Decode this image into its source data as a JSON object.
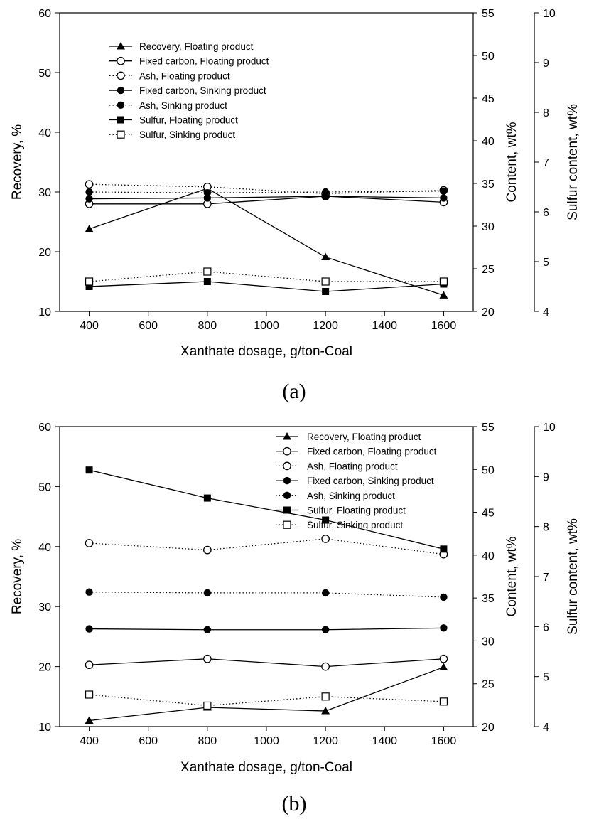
{
  "figure": {
    "captions": [
      "(a)",
      "(b)"
    ]
  },
  "chart_data": [
    {
      "type": "line",
      "panel_label": "(a)",
      "xlabel": "Xanthate dosage, g/ton-Coal",
      "ylabel": "Recovery, %",
      "y2label": "Content, wt%",
      "y3label": "Sulfur content, wt%",
      "x": [
        400,
        800,
        1200,
        1600
      ],
      "xticks": [
        "400",
        "600",
        "800",
        "1000",
        "1200",
        "1400",
        "1600"
      ],
      "xlim": [
        300,
        1700
      ],
      "ylim": [
        10,
        60
      ],
      "yticks": [
        "10",
        "20",
        "30",
        "40",
        "50",
        "60"
      ],
      "y2lim": [
        20,
        55
      ],
      "y2ticks": [
        "20",
        "25",
        "30",
        "35",
        "40",
        "45",
        "50",
        "55"
      ],
      "y3lim": [
        4,
        10
      ],
      "y3ticks": [
        "4",
        "5",
        "6",
        "7",
        "8",
        "9",
        "10"
      ],
      "legend_position": "upper-left",
      "grid": false,
      "series": [
        {
          "name": "Recovery, Floating product",
          "axis": "left",
          "marker": "triangle",
          "line": "solid",
          "values": [
            23.8,
            30.6,
            19.1,
            12.7
          ]
        },
        {
          "name": "Fixed carbon, Floating product",
          "axis": "right",
          "marker": "open-circle",
          "line": "solid",
          "values": [
            32.6,
            32.6,
            33.5,
            32.8
          ]
        },
        {
          "name": "Ash, Floating product",
          "axis": "right",
          "marker": "open-circle",
          "line": "dotted",
          "values": [
            34.9,
            34.6,
            33.8,
            34.2
          ]
        },
        {
          "name": "Fixed carbon, Sinking product",
          "axis": "right",
          "marker": "filled-circle",
          "line": "solid",
          "values": [
            33.2,
            33.3,
            33.5,
            33.3
          ]
        },
        {
          "name": "Ash, Sinking product",
          "axis": "right",
          "marker": "filled-circle",
          "line": "dotted",
          "values": [
            34.0,
            33.9,
            34.0,
            34.1
          ]
        },
        {
          "name": "Sulfur, Floating product",
          "axis": "sulfur",
          "marker": "filled-square",
          "line": "solid",
          "values": [
            4.5,
            4.6,
            4.4,
            4.55
          ]
        },
        {
          "name": "Sulfur, Sinking product",
          "axis": "sulfur",
          "marker": "open-square",
          "line": "dotted",
          "values": [
            4.6,
            4.8,
            4.6,
            4.6
          ]
        }
      ]
    },
    {
      "type": "line",
      "panel_label": "(b)",
      "xlabel": "Xanthate dosage, g/ton-Coal",
      "ylabel": "Recovery, %",
      "y2label": "Content, wt%",
      "y3label": "Sulfur content, wt%",
      "x": [
        400,
        800,
        1200,
        1600
      ],
      "xticks": [
        "400",
        "600",
        "800",
        "1000",
        "1200",
        "1400",
        "1600"
      ],
      "xlim": [
        300,
        1700
      ],
      "ylim": [
        10,
        60
      ],
      "yticks": [
        "10",
        "20",
        "30",
        "40",
        "50",
        "60"
      ],
      "y2lim": [
        20,
        55
      ],
      "y2ticks": [
        "20",
        "25",
        "30",
        "35",
        "40",
        "45",
        "50",
        "55"
      ],
      "y3lim": [
        4,
        10
      ],
      "y3ticks": [
        "4",
        "5",
        "6",
        "7",
        "8",
        "9",
        "10"
      ],
      "legend_position": "upper-right",
      "grid": false,
      "series": [
        {
          "name": "Recovery, Floating product",
          "axis": "left",
          "marker": "triangle",
          "line": "solid",
          "values": [
            11.0,
            13.2,
            12.6,
            19.9
          ]
        },
        {
          "name": "Fixed carbon, Floating product",
          "axis": "right",
          "marker": "open-circle",
          "line": "solid",
          "values": [
            27.2,
            27.9,
            27.0,
            27.9
          ]
        },
        {
          "name": "Ash, Floating product",
          "axis": "right",
          "marker": "open-circle",
          "line": "dotted",
          "values": [
            41.4,
            40.6,
            41.9,
            40.1
          ]
        },
        {
          "name": "Fixed carbon, Sinking product",
          "axis": "right",
          "marker": "filled-circle",
          "line": "solid",
          "values": [
            31.4,
            31.3,
            31.3,
            31.5
          ]
        },
        {
          "name": "Ash, Sinking product",
          "axis": "right",
          "marker": "filled-circle",
          "line": "dotted",
          "values": [
            35.7,
            35.6,
            35.6,
            35.1
          ]
        },
        {
          "name": "Sulfur, Floating product",
          "axis": "sulfur",
          "marker": "filled-square",
          "line": "solid",
          "values": [
            9.13,
            8.57,
            8.13,
            7.55
          ]
        },
        {
          "name": "Sulfur, Sinking product",
          "axis": "sulfur",
          "marker": "open-square",
          "line": "dotted",
          "values": [
            4.64,
            4.42,
            4.6,
            4.5
          ]
        }
      ]
    }
  ]
}
